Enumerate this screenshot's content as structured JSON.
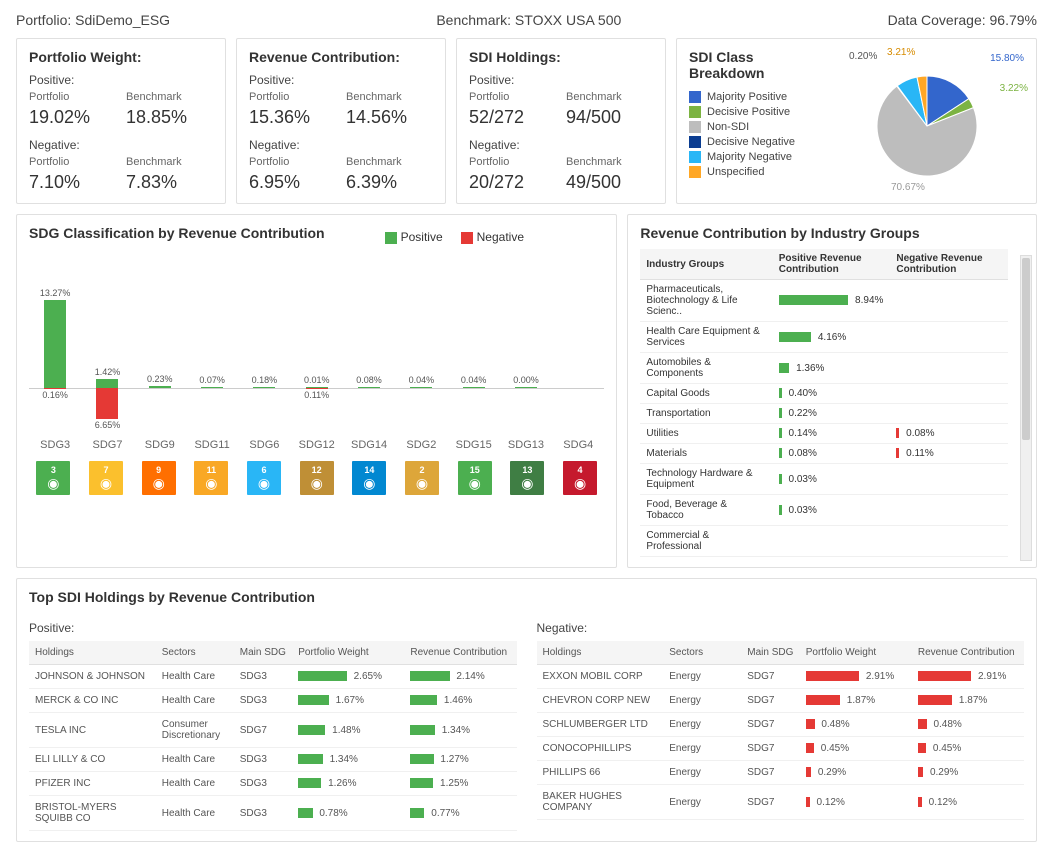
{
  "header": {
    "portfolio_label": "Portfolio: SdiDemo_ESG",
    "benchmark_label": "Benchmark: STOXX USA 500",
    "coverage_label": "Data Coverage: 96.79%"
  },
  "cards": {
    "portfolio_weight": {
      "title": "Portfolio Weight:",
      "positive_label": "Positive:",
      "negative_label": "Negative:",
      "col_portfolio": "Portfolio",
      "col_benchmark": "Benchmark",
      "pos_port": "19.02%",
      "pos_bench": "18.85%",
      "neg_port": "7.10%",
      "neg_bench": "7.83%"
    },
    "revenue_contribution": {
      "title": "Revenue Contribution:",
      "positive_label": "Positive:",
      "negative_label": "Negative:",
      "col_portfolio": "Portfolio",
      "col_benchmark": "Benchmark",
      "pos_port": "15.36%",
      "pos_bench": "14.56%",
      "neg_port": "6.95%",
      "neg_bench": "6.39%"
    },
    "sdi_holdings": {
      "title": "SDI Holdings:",
      "positive_label": "Positive:",
      "negative_label": "Negative:",
      "col_portfolio": "Portfolio",
      "col_benchmark": "Benchmark",
      "pos_port": "52/272",
      "pos_bench": "94/500",
      "neg_port": "20/272",
      "neg_bench": "49/500"
    }
  },
  "pie": {
    "title": "SDI Class Breakdown",
    "legend": [
      {
        "label": "Majority Positive",
        "color": "#3366cc"
      },
      {
        "label": "Decisive Positive",
        "color": "#7cb342"
      },
      {
        "label": "Non-SDI",
        "color": "#bdbdbd"
      },
      {
        "label": "Decisive Negative",
        "color": "#0b3d91"
      },
      {
        "label": "Majority Negative",
        "color": "#29b6f6"
      },
      {
        "label": "Unspecified",
        "color": "#ffa726"
      }
    ],
    "slices": [
      {
        "label": "15.80%",
        "value": 15.8,
        "color": "#3366cc"
      },
      {
        "label": "3.22%",
        "value": 3.22,
        "color": "#7cb342"
      },
      {
        "label": "70.67%",
        "value": 70.67,
        "color": "#bdbdbd"
      },
      {
        "label": "0.20%",
        "value": 0.2,
        "color": "#0b3d91"
      },
      {
        "label": "6.90%",
        "value": 6.9,
        "color": "#29b6f6"
      },
      {
        "label": "3.21%",
        "value": 3.21,
        "color": "#ffa726"
      }
    ]
  },
  "sdg": {
    "title": "SDG Classification by Revenue Contribution",
    "legend_pos": "Positive",
    "legend_neg": "Negative",
    "pos_color": "#4caf50",
    "neg_color": "#e53935",
    "max_pct": 13.5,
    "bars": [
      {
        "name": "SDG3",
        "pos": 13.27,
        "neg": 0.16,
        "icon_color": "#4caf50"
      },
      {
        "name": "SDG7",
        "pos": 1.42,
        "neg": 6.65,
        "icon_color": "#fbc02d"
      },
      {
        "name": "SDG9",
        "pos": 0.23,
        "neg": 0,
        "icon_color": "#ff6f00"
      },
      {
        "name": "SDG11",
        "pos": 0.07,
        "neg": 0,
        "icon_color": "#f9a825"
      },
      {
        "name": "SDG6",
        "pos": 0.18,
        "neg": 0,
        "icon_color": "#29b6f6"
      },
      {
        "name": "SDG12",
        "pos": 0.01,
        "neg": 0.11,
        "icon_color": "#bf8f36"
      },
      {
        "name": "SDG14",
        "pos": 0.08,
        "neg": 0,
        "icon_color": "#0288d1"
      },
      {
        "name": "SDG2",
        "pos": 0.04,
        "neg": 0,
        "icon_color": "#dda63a"
      },
      {
        "name": "SDG15",
        "pos": 0.04,
        "neg": 0,
        "icon_color": "#4caf50"
      },
      {
        "name": "SDG13",
        "pos": 0.0,
        "neg": 0,
        "icon_color": "#3f7e44"
      },
      {
        "name": "SDG4",
        "pos": null,
        "neg": 0,
        "icon_color": "#c5192d"
      }
    ]
  },
  "industry": {
    "title": "Revenue Contribution by Industry Groups",
    "col_group": "Industry Groups",
    "col_pos": "Positive Revenue Contribution",
    "col_neg": "Negative Revenue Contribution",
    "max_pct": 9.0,
    "rows": [
      {
        "name": "Pharmaceuticals, Biotechnology & Life Scienc..",
        "pos": 8.94,
        "neg": null
      },
      {
        "name": "Health Care Equipment & Services",
        "pos": 4.16,
        "neg": null
      },
      {
        "name": "Automobiles & Components",
        "pos": 1.36,
        "neg": null
      },
      {
        "name": "Capital Goods",
        "pos": 0.4,
        "neg": null
      },
      {
        "name": "Transportation",
        "pos": 0.22,
        "neg": null
      },
      {
        "name": "Utilities",
        "pos": 0.14,
        "neg": 0.08
      },
      {
        "name": "Materials",
        "pos": 0.08,
        "neg": 0.11
      },
      {
        "name": "Technology Hardware & Equipment",
        "pos": 0.03,
        "neg": null
      },
      {
        "name": "Food, Beverage & Tobacco",
        "pos": 0.03,
        "neg": null
      },
      {
        "name": "Commercial & Professional",
        "pos": null,
        "neg": null
      }
    ]
  },
  "holdings": {
    "title": "Top SDI Holdings by Revenue Contribution",
    "positive_label": "Positive:",
    "negative_label": "Negative:",
    "col_holdings": "Holdings",
    "col_sectors": "Sectors",
    "col_sdg": "Main SDG",
    "col_weight": "Portfolio Weight",
    "col_rev": "Revenue Contribution",
    "max_pct": 3.0,
    "positive": [
      {
        "name": "JOHNSON & JOHNSON",
        "sector": "Health Care",
        "sdg": "SDG3",
        "weight": 2.65,
        "rev": 2.14
      },
      {
        "name": "MERCK & CO INC",
        "sector": "Health Care",
        "sdg": "SDG3",
        "weight": 1.67,
        "rev": 1.46
      },
      {
        "name": "TESLA INC",
        "sector": "Consumer Discretionary",
        "sdg": "SDG7",
        "weight": 1.48,
        "rev": 1.34
      },
      {
        "name": "ELI LILLY & CO",
        "sector": "Health Care",
        "sdg": "SDG3",
        "weight": 1.34,
        "rev": 1.27
      },
      {
        "name": "PFIZER INC",
        "sector": "Health Care",
        "sdg": "SDG3",
        "weight": 1.26,
        "rev": 1.25
      },
      {
        "name": "BRISTOL-MYERS SQUIBB CO",
        "sector": "Health Care",
        "sdg": "SDG3",
        "weight": 0.78,
        "rev": 0.77
      }
    ],
    "negative": [
      {
        "name": "EXXON MOBIL CORP",
        "sector": "Energy",
        "sdg": "SDG7",
        "weight": 2.91,
        "rev": 2.91
      },
      {
        "name": "CHEVRON CORP NEW",
        "sector": "Energy",
        "sdg": "SDG7",
        "weight": 1.87,
        "rev": 1.87
      },
      {
        "name": "SCHLUMBERGER LTD",
        "sector": "Energy",
        "sdg": "SDG7",
        "weight": 0.48,
        "rev": 0.48
      },
      {
        "name": "CONOCOPHILLIPS",
        "sector": "Energy",
        "sdg": "SDG7",
        "weight": 0.45,
        "rev": 0.45
      },
      {
        "name": "PHILLIPS 66",
        "sector": "Energy",
        "sdg": "SDG7",
        "weight": 0.29,
        "rev": 0.29
      },
      {
        "name": "BAKER HUGHES COMPANY",
        "sector": "Energy",
        "sdg": "SDG7",
        "weight": 0.12,
        "rev": 0.12
      }
    ]
  },
  "colors": {
    "pos": "#4caf50",
    "neg": "#e53935"
  }
}
